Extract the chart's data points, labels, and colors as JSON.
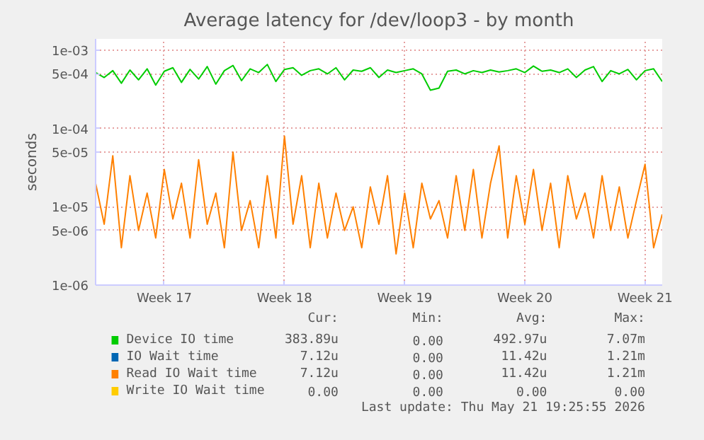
{
  "chart_data": {
    "type": "line",
    "title": "Average latency for /dev/loop3 - by month",
    "ylabel": "seconds",
    "log": "y",
    "x": [
      "2026-04-19T12:00",
      "2026-04-20T00:00",
      "2026-04-20T12:00",
      "2026-04-21T00:00",
      "2026-04-21T12:00",
      "2026-04-22T00:00",
      "2026-04-22T12:00",
      "2026-04-23T00:00",
      "2026-04-23T12:00",
      "2026-04-24T00:00",
      "2026-04-24T12:00",
      "2026-04-25T00:00",
      "2026-04-25T12:00",
      "2026-04-26T00:00",
      "2026-04-26T12:00",
      "2026-04-27T00:00",
      "2026-04-27T12:00",
      "2026-04-28T00:00",
      "2026-04-28T12:00",
      "2026-04-29T00:00",
      "2026-04-29T12:00",
      "2026-04-30T00:00",
      "2026-04-30T12:00",
      "2026-05-01T00:00",
      "2026-05-01T12:00",
      "2026-05-02T00:00",
      "2026-05-02T12:00",
      "2026-05-03T00:00",
      "2026-05-03T12:00",
      "2026-05-04T00:00",
      "2026-05-04T12:00",
      "2026-05-05T00:00",
      "2026-05-05T12:00",
      "2026-05-06T00:00",
      "2026-05-06T12:00",
      "2026-05-07T00:00",
      "2026-05-07T12:00",
      "2026-05-08T00:00",
      "2026-05-08T12:00",
      "2026-05-09T00:00",
      "2026-05-09T12:00",
      "2026-05-10T00:00",
      "2026-05-10T12:00",
      "2026-05-11T00:00",
      "2026-05-11T12:00",
      "2026-05-12T00:00",
      "2026-05-12T12:00",
      "2026-05-13T00:00",
      "2026-05-13T12:00",
      "2026-05-14T00:00",
      "2026-05-14T12:00",
      "2026-05-15T00:00",
      "2026-05-15T12:00",
      "2026-05-16T00:00",
      "2026-05-16T12:00",
      "2026-05-17T00:00",
      "2026-05-17T12:00",
      "2026-05-18T00:00",
      "2026-05-18T12:00",
      "2026-05-19T00:00",
      "2026-05-19T12:00",
      "2026-05-20T00:00",
      "2026-05-20T12:00",
      "2026-05-21T00:00",
      "2026-05-21T12:00",
      "2026-05-22T00:00",
      "2026-05-22T12:00"
    ],
    "xlim": [
      "2026-04-19T12:00",
      "2026-05-22T12:00"
    ],
    "xticks": [
      {
        "value": "2026-04-23T12:00",
        "label": "Week 17"
      },
      {
        "value": "2026-04-30T12:00",
        "label": "Week 18"
      },
      {
        "value": "2026-05-07T12:00",
        "label": "Week 19"
      },
      {
        "value": "2026-05-14T12:00",
        "label": "Week 20"
      },
      {
        "value": "2026-05-21T12:00",
        "label": "Week 21"
      }
    ],
    "ylim": [
      1e-06,
      0.0014
    ],
    "yticks": [
      {
        "value": 1e-06,
        "label": "1e-06"
      },
      {
        "value": 5e-06,
        "label": "5e-06"
      },
      {
        "value": 1e-05,
        "label": "1e-05"
      },
      {
        "value": 5e-05,
        "label": "5e-05"
      },
      {
        "value": 0.0001,
        "label": "1e-04"
      },
      {
        "value": 0.0005,
        "label": "5e-04"
      },
      {
        "value": 0.001,
        "label": "1e-03"
      }
    ],
    "series": [
      {
        "name": "Device IO time",
        "color": "#00cc00",
        "values": [
          0.00052,
          0.00045,
          0.00055,
          0.00038,
          0.00056,
          0.00042,
          0.00058,
          0.00036,
          0.00054,
          0.0006,
          0.00039,
          0.00057,
          0.00043,
          0.00062,
          0.00037,
          0.00055,
          0.00064,
          0.00041,
          0.00058,
          0.00052,
          0.00066,
          0.0004,
          0.00057,
          0.0006,
          0.00048,
          0.00055,
          0.00058,
          0.0005,
          0.0006,
          0.00042,
          0.00056,
          0.00054,
          0.0006,
          0.00045,
          0.00056,
          0.00052,
          0.00055,
          0.00058,
          0.0005,
          0.00031,
          0.00033,
          0.00054,
          0.00056,
          0.0005,
          0.00055,
          0.00052,
          0.00056,
          0.00053,
          0.00055,
          0.00058,
          0.00052,
          0.00063,
          0.00054,
          0.00056,
          0.00052,
          0.00058,
          0.00045,
          0.00056,
          0.00062,
          0.0004,
          0.00055,
          0.0005,
          0.00057,
          0.00042,
          0.00055,
          0.00058,
          0.0004
        ]
      },
      {
        "name": "IO Wait time",
        "color": "#0066b3",
        "values": [
          null,
          null,
          null,
          null,
          null,
          null,
          null,
          null,
          null,
          null,
          null,
          null,
          null,
          null,
          null,
          null,
          null,
          null,
          null,
          null,
          null,
          null,
          null,
          null,
          null,
          null,
          null,
          null,
          null,
          null,
          null,
          null,
          null,
          null,
          null,
          null,
          null,
          null,
          null,
          null,
          null,
          null,
          null,
          null,
          null,
          null,
          null,
          null,
          null,
          null,
          null,
          null,
          null,
          null,
          null,
          null,
          null,
          null,
          null,
          null,
          null,
          null,
          null,
          null,
          null,
          null,
          null
        ]
      },
      {
        "name": "Read IO Wait time",
        "color": "#ff8000",
        "values": [
          2e-05,
          6e-06,
          4.5e-05,
          3e-06,
          2.5e-05,
          5e-06,
          1.5e-05,
          4e-06,
          3e-05,
          7e-06,
          2e-05,
          4e-06,
          4e-05,
          6e-06,
          1.5e-05,
          3e-06,
          5e-05,
          5e-06,
          1.2e-05,
          3e-06,
          2.5e-05,
          4e-06,
          8e-05,
          6e-06,
          2.5e-05,
          3e-06,
          2e-05,
          4e-06,
          1.5e-05,
          5e-06,
          1e-05,
          3e-06,
          1.8e-05,
          6e-06,
          2.5e-05,
          2.5e-06,
          1.5e-05,
          3e-06,
          2e-05,
          7e-06,
          1.2e-05,
          4e-06,
          2.5e-05,
          5e-06,
          3e-05,
          4e-06,
          2e-05,
          6e-05,
          4e-06,
          2.5e-05,
          6e-06,
          3e-05,
          5e-06,
          2e-05,
          3e-06,
          2.5e-05,
          7e-06,
          1.5e-05,
          4e-06,
          2.5e-05,
          5e-06,
          1.8e-05,
          4e-06,
          1.2e-05,
          3.5e-05,
          3e-06,
          8e-06
        ]
      },
      {
        "name": "Write IO Wait time",
        "color": "#ffcc00",
        "values": [
          null,
          null,
          null,
          null,
          null,
          null,
          null,
          null,
          null,
          null,
          null,
          null,
          null,
          null,
          null,
          null,
          null,
          null,
          null,
          null,
          null,
          null,
          null,
          null,
          null,
          null,
          null,
          null,
          null,
          null,
          null,
          null,
          null,
          null,
          null,
          null,
          null,
          null,
          null,
          null,
          null,
          null,
          null,
          null,
          null,
          null,
          null,
          null,
          null,
          null,
          null,
          null,
          null,
          null,
          null,
          null,
          null,
          null,
          null,
          null,
          null,
          null,
          null,
          null,
          null,
          null,
          null
        ]
      }
    ],
    "grid": true,
    "legend": "bottom",
    "annotations": [
      "Cur:",
      "Min:",
      "Avg:",
      "Max:",
      "383.89u",
      "0.00",
      "492.97u",
      "7.07m",
      "7.12u",
      "0.00",
      "11.42u",
      "1.21m",
      "7.12u",
      "0.00",
      "11.42u",
      "1.21m",
      "0.00",
      "0.00",
      "0.00",
      "0.00",
      "Last update: Thu May 21 19:25:55 2026"
    ]
  }
}
